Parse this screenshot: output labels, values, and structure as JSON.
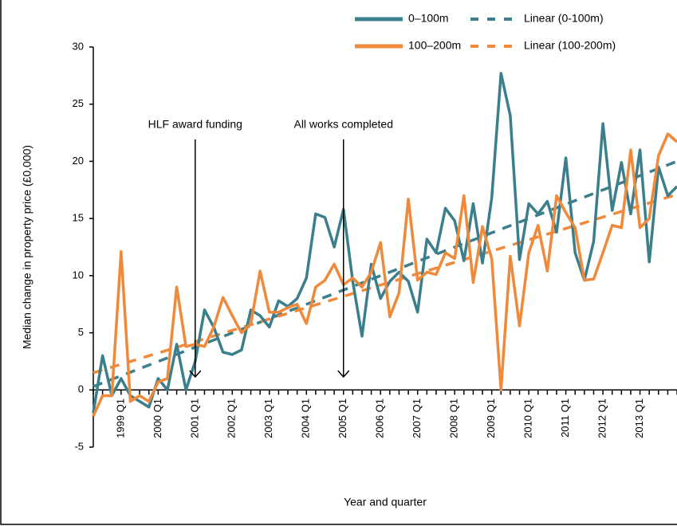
{
  "chart_data": {
    "type": "line",
    "y_label": "Median change in property price (£0,000)",
    "x_label": "Year and quarter",
    "categories": [
      null,
      null,
      null,
      "1999 Q1",
      null,
      null,
      null,
      "2000 Q1",
      null,
      null,
      null,
      "2001 Q1",
      null,
      null,
      null,
      "2002 Q1",
      null,
      null,
      null,
      "2003 Q1",
      null,
      null,
      null,
      "2004 Q1",
      null,
      null,
      null,
      "2005 Q1",
      null,
      null,
      null,
      "2006 Q1",
      null,
      null,
      null,
      "2007 Q1",
      null,
      null,
      null,
      "2008 Q1",
      null,
      null,
      null,
      "2009 Q1",
      null,
      null,
      null,
      "2010 Q1",
      null,
      null,
      null,
      "2011 Q1",
      null,
      null,
      null,
      "2012 Q1",
      null,
      null,
      null,
      "2013 Q1",
      null,
      null,
      null,
      null
    ],
    "series": [
      {
        "name": "0–100m",
        "color": "#3b7f8c",
        "values": [
          -2,
          3,
          -0.5,
          1,
          -0.5,
          -1,
          -1.5,
          1,
          0,
          4,
          0,
          2.5,
          7,
          5.5,
          3.3,
          3.1,
          3.5,
          7,
          6.5,
          5.5,
          7.8,
          7.3,
          8,
          9.8,
          15.4,
          15.1,
          12.5,
          15.8,
          9.5,
          4.7,
          11,
          8,
          9.5,
          10.3,
          9.5,
          6.8,
          13.2,
          12,
          15.9,
          14.8,
          11.3,
          16.3,
          11.1,
          16.8,
          27.7,
          24,
          11.4,
          16.3,
          15.4,
          16.5,
          13.8,
          20.3,
          12,
          9.6,
          13,
          23.3,
          15.7,
          19.9,
          15.4,
          21,
          11.2,
          19.5,
          17,
          17.8
        ]
      },
      {
        "name": "100–200m",
        "color": "#f0893a",
        "values": [
          -2.3,
          -0.5,
          -0.5,
          12.1,
          -1,
          -0.5,
          -1,
          0.7,
          1,
          9,
          3.8,
          4,
          3.8,
          5.5,
          8.1,
          6.5,
          5,
          5.8,
          10.4,
          6.8,
          6.8,
          7.2,
          7.5,
          5.8,
          9,
          9.6,
          11,
          9.2,
          9.8,
          9,
          10.3,
          12.9,
          6.4,
          8.5,
          16.7,
          9.6,
          10.3,
          10.1,
          12,
          11.5,
          17,
          9.4,
          14.3,
          11.5,
          0,
          11.7,
          5.6,
          12,
          14.4,
          10.4,
          17,
          15.5,
          14.2,
          9.6,
          9.7,
          12,
          14.4,
          14.2,
          21,
          14.2,
          15,
          20.5,
          22.4,
          21.7
        ]
      }
    ],
    "trendlines": [
      {
        "name": "Linear (0-100m)",
        "color": "#3b7f8c",
        "values": [
          0.3,
          20
        ]
      },
      {
        "name": "Linear (100-200m)",
        "color": "#f0893a",
        "values": [
          1.5,
          17.1
        ]
      }
    ],
    "annotations": [
      {
        "text": "HLF award funding",
        "category": "2001 Q1"
      },
      {
        "text": "All works completed",
        "category": "2005 Q1"
      }
    ],
    "ylim": [
      -5,
      30
    ],
    "yticks": [
      -5,
      0,
      5,
      10,
      15,
      20,
      25,
      30
    ]
  }
}
